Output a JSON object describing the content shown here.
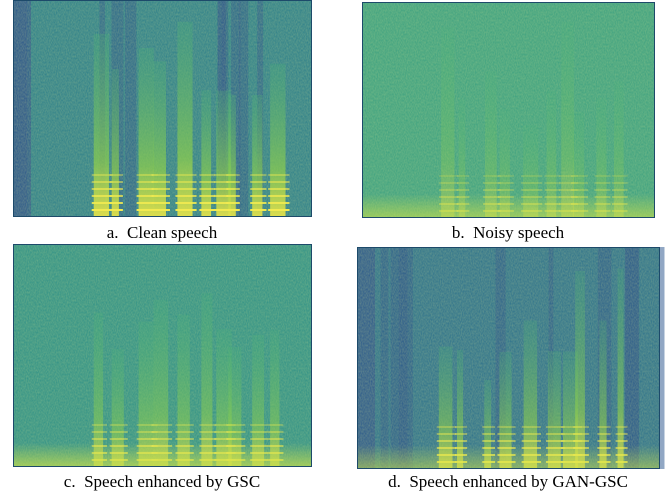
{
  "panels": [
    {
      "caption": "a.  Clean speech"
    },
    {
      "caption": "b.  Noisy speech"
    },
    {
      "caption": "c.  Speech enhanced by GSC"
    },
    {
      "caption": "d.  Speech enhanced by GAN-GSC"
    }
  ]
}
